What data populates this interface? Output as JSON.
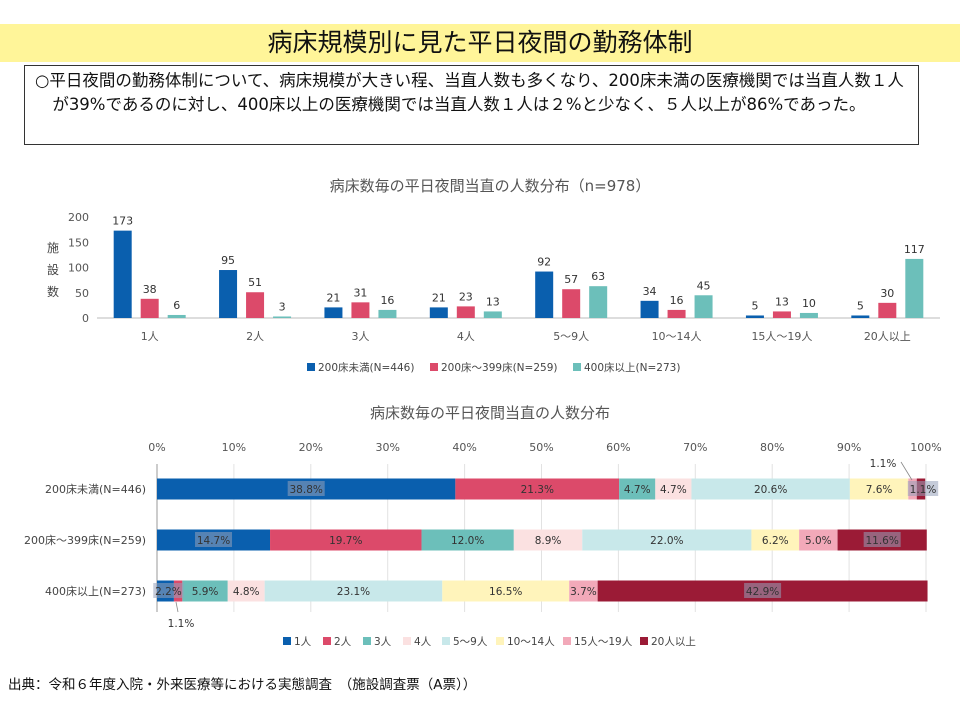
{
  "header": {
    "title": "病床規模別に見た平日夜間の勤務体制",
    "summary": "○平日夜間の勤務体制について、病床規模が大きい程、当直人数も多くなり、200床未満の医療機関では当直人数１人が39%であるのに対し、400床以上の医療機関では当直人数１人は２%と少なく、５人以上が86%であった。"
  },
  "colors": {
    "200床未満": "#0a5fae",
    "200床～399床": "#dc4a6a",
    "400床以上": "#6cbfba",
    "stack": [
      "#0a5fae",
      "#dc4a6a",
      "#6cbfba",
      "#fbe1e1",
      "#c8e8ea",
      "#fff4bb",
      "#f2a9b9",
      "#9b1b36"
    ]
  },
  "chart_data": [
    {
      "type": "bar",
      "title": "病床数毎の平日夜間当直の人数分布（n=978）",
      "ylabel": "施設数",
      "ylim": [
        0,
        200
      ],
      "yticks": [
        "0",
        "50",
        "100",
        "150",
        "200"
      ],
      "categories": [
        "1人",
        "2人",
        "3人",
        "4人",
        "5～9人",
        "10～14人",
        "15人～19人",
        "20人以上"
      ],
      "series": [
        {
          "name": "200床未満(N=446)",
          "values": [
            173,
            95,
            21,
            21,
            92,
            34,
            5,
            5
          ]
        },
        {
          "name": "200床～399床(N=259)",
          "values": [
            38,
            51,
            31,
            23,
            57,
            16,
            13,
            30
          ]
        },
        {
          "name": "400床以上(N=273)",
          "values": [
            6,
            3,
            16,
            13,
            63,
            45,
            10,
            117
          ]
        }
      ],
      "legend": "bottom"
    },
    {
      "type": "bar",
      "orientation": "horizontal-stacked-100",
      "title": "病床数毎の平日夜間当直の人数分布",
      "xticks": [
        "0%",
        "10%",
        "20%",
        "30%",
        "40%",
        "50%",
        "60%",
        "70%",
        "80%",
        "90%",
        "100%"
      ],
      "categories": [
        "200床未満(N=446)",
        "200床～399床(N=259)",
        "400床以上(N=273)"
      ],
      "series": [
        {
          "name": "1人",
          "values": [
            38.8,
            14.7,
            2.2
          ],
          "labels": [
            "38.8%",
            "14.7%",
            "2.2%"
          ]
        },
        {
          "name": "2人",
          "values": [
            21.3,
            19.7,
            1.1
          ],
          "labels": [
            "21.3%",
            "19.7%",
            "1.1%"
          ]
        },
        {
          "name": "3人",
          "values": [
            4.7,
            12.0,
            5.9
          ],
          "labels": [
            "4.7%",
            "12.0%",
            "5.9%"
          ]
        },
        {
          "name": "4人",
          "values": [
            4.7,
            8.9,
            4.8
          ],
          "labels": [
            "4.7%",
            "8.9%",
            "4.8%"
          ]
        },
        {
          "name": "5～9人",
          "values": [
            20.6,
            22.0,
            23.1
          ],
          "labels": [
            "20.6%",
            "22.0%",
            "23.1%"
          ]
        },
        {
          "name": "10～14人",
          "values": [
            7.6,
            6.2,
            16.5
          ],
          "labels": [
            "7.6%",
            "6.2%",
            "16.5%"
          ]
        },
        {
          "name": "15人～19人",
          "values": [
            1.1,
            5.0,
            3.7
          ],
          "labels": [
            "1.1%",
            "5.0%",
            "3.7%"
          ]
        },
        {
          "name": "20人以上",
          "values": [
            1.1,
            11.6,
            42.9
          ],
          "labels": [
            "1.1%",
            "11.6%",
            "42.9%"
          ]
        }
      ],
      "legend": "bottom"
    }
  ],
  "footer": {
    "source": "出典：令和６年度入院・外来医療等における実態調査　（施設調査票（A票））"
  }
}
